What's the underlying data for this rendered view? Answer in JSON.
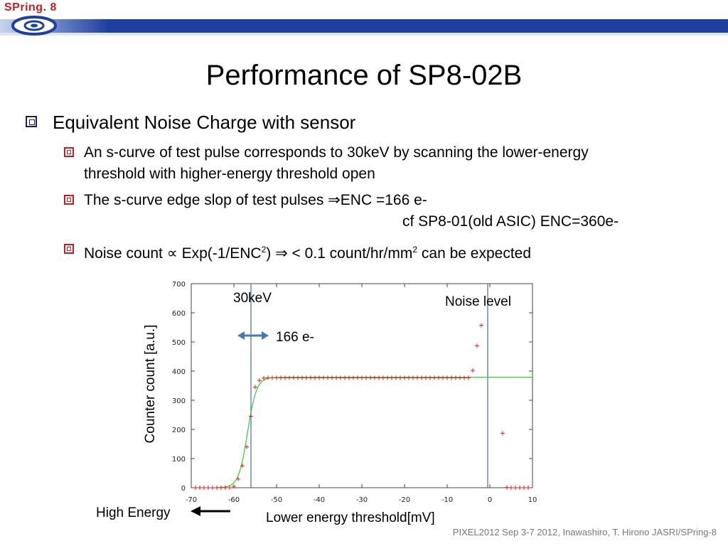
{
  "logo": {
    "text": "SPring. 8"
  },
  "slide": {
    "title": "Performance of SP8-02B",
    "bullet1": "Equivalent Noise Charge with sensor",
    "sub1_line1": "An s-curve of test pulse corresponds to 30keV by scanning the lower-energy",
    "sub1_line2": "threshold with higher-energy threshold open",
    "sub2_line1": "The s-curve edge slop of test pulses ⇒ENC =166 e-",
    "sub2_line2": "cf  SP8-01(old ASIC) ENC=360e-",
    "sub3_pre": "Noise count ∝  Exp(-1/ENC",
    "sub3_sup1": "2",
    "sub3_mid": ") ⇒ < 0.1 count/hr/mm",
    "sub3_sup2": "2",
    "sub3_post": " can be expected",
    "footer": "PIXEL2012 Sep 3-7 2012, Inawashiro, T. Hirono JASRI/SPring-8"
  },
  "annotations": {
    "kev": "30keV",
    "noise": "Noise level",
    "enc": "166 e-",
    "high_energy": "High Energy",
    "xlabel": "Lower energy threshold[mV]",
    "ylabel": "Counter count [a.u.]"
  },
  "colors": {
    "header_blue": "#1c3fa0",
    "accent_red": "#c02020",
    "fit_green": "#33cc33",
    "marker_line": "#5577aa"
  },
  "chart_data": {
    "type": "scatter",
    "xlim": [
      -70,
      10
    ],
    "ylim": [
      0,
      700
    ],
    "x_ticks": [
      -70,
      -60,
      -50,
      -40,
      -30,
      -20,
      -10,
      0,
      10
    ],
    "y_ticks": [
      0,
      100,
      200,
      300,
      400,
      500,
      600,
      700
    ],
    "x_ticklabels": [
      "-70",
      "-60",
      "-50",
      "-40",
      "-30",
      "-20",
      "-10",
      "0",
      "10"
    ],
    "y_ticklabels": [
      "0",
      "100",
      "200",
      "300",
      "400",
      "500",
      "600",
      "700"
    ],
    "xlabel": "Lower energy threshold[mV]",
    "ylabel": "Counter count [a.u.]",
    "vlines": [
      {
        "x": -56,
        "label": "30keV"
      },
      {
        "x": -0.5,
        "label": "Noise level"
      }
    ],
    "data": {
      "x": [
        -69,
        -68,
        -67,
        -66,
        -65,
        -64,
        -63,
        -62,
        -61,
        -60,
        -59,
        -58,
        -57,
        -56,
        -55,
        -54,
        -53,
        -52,
        -51,
        -50,
        -49,
        -48,
        -47,
        -46,
        -45,
        -44,
        -43,
        -42,
        -41,
        -40,
        -39,
        -38,
        -37,
        -36,
        -35,
        -34,
        -33,
        -32,
        -31,
        -30,
        -29,
        -28,
        -27,
        -26,
        -25,
        -24,
        -23,
        -22,
        -21,
        -20,
        -19,
        -18,
        -17,
        -16,
        -15,
        -14,
        -13,
        -12,
        -11,
        -10,
        -9,
        -8,
        -7,
        -6,
        -5,
        -4,
        -3,
        -2,
        3,
        4,
        5,
        6,
        7,
        8,
        9
      ],
      "y": [
        0,
        0,
        0,
        0,
        0,
        0,
        0,
        0,
        0,
        5,
        30,
        75,
        140,
        245,
        345,
        368,
        376,
        377,
        377,
        377,
        377,
        377,
        377,
        377,
        377,
        377,
        377,
        377,
        377,
        377,
        377,
        377,
        377,
        377,
        377,
        377,
        377,
        377,
        377,
        377,
        377,
        377,
        377,
        377,
        377,
        377,
        377,
        377,
        377,
        377,
        377,
        377,
        377,
        377,
        377,
        377,
        377,
        377,
        377,
        377,
        377,
        377,
        377,
        377,
        377,
        402,
        487,
        557,
        187,
        1,
        0,
        0,
        0,
        0,
        0
      ]
    },
    "fit": {
      "type": "sigmoid",
      "plateau": 379,
      "center": -56.8,
      "width": 1.05,
      "x_range": [
        -64,
        10
      ]
    }
  }
}
